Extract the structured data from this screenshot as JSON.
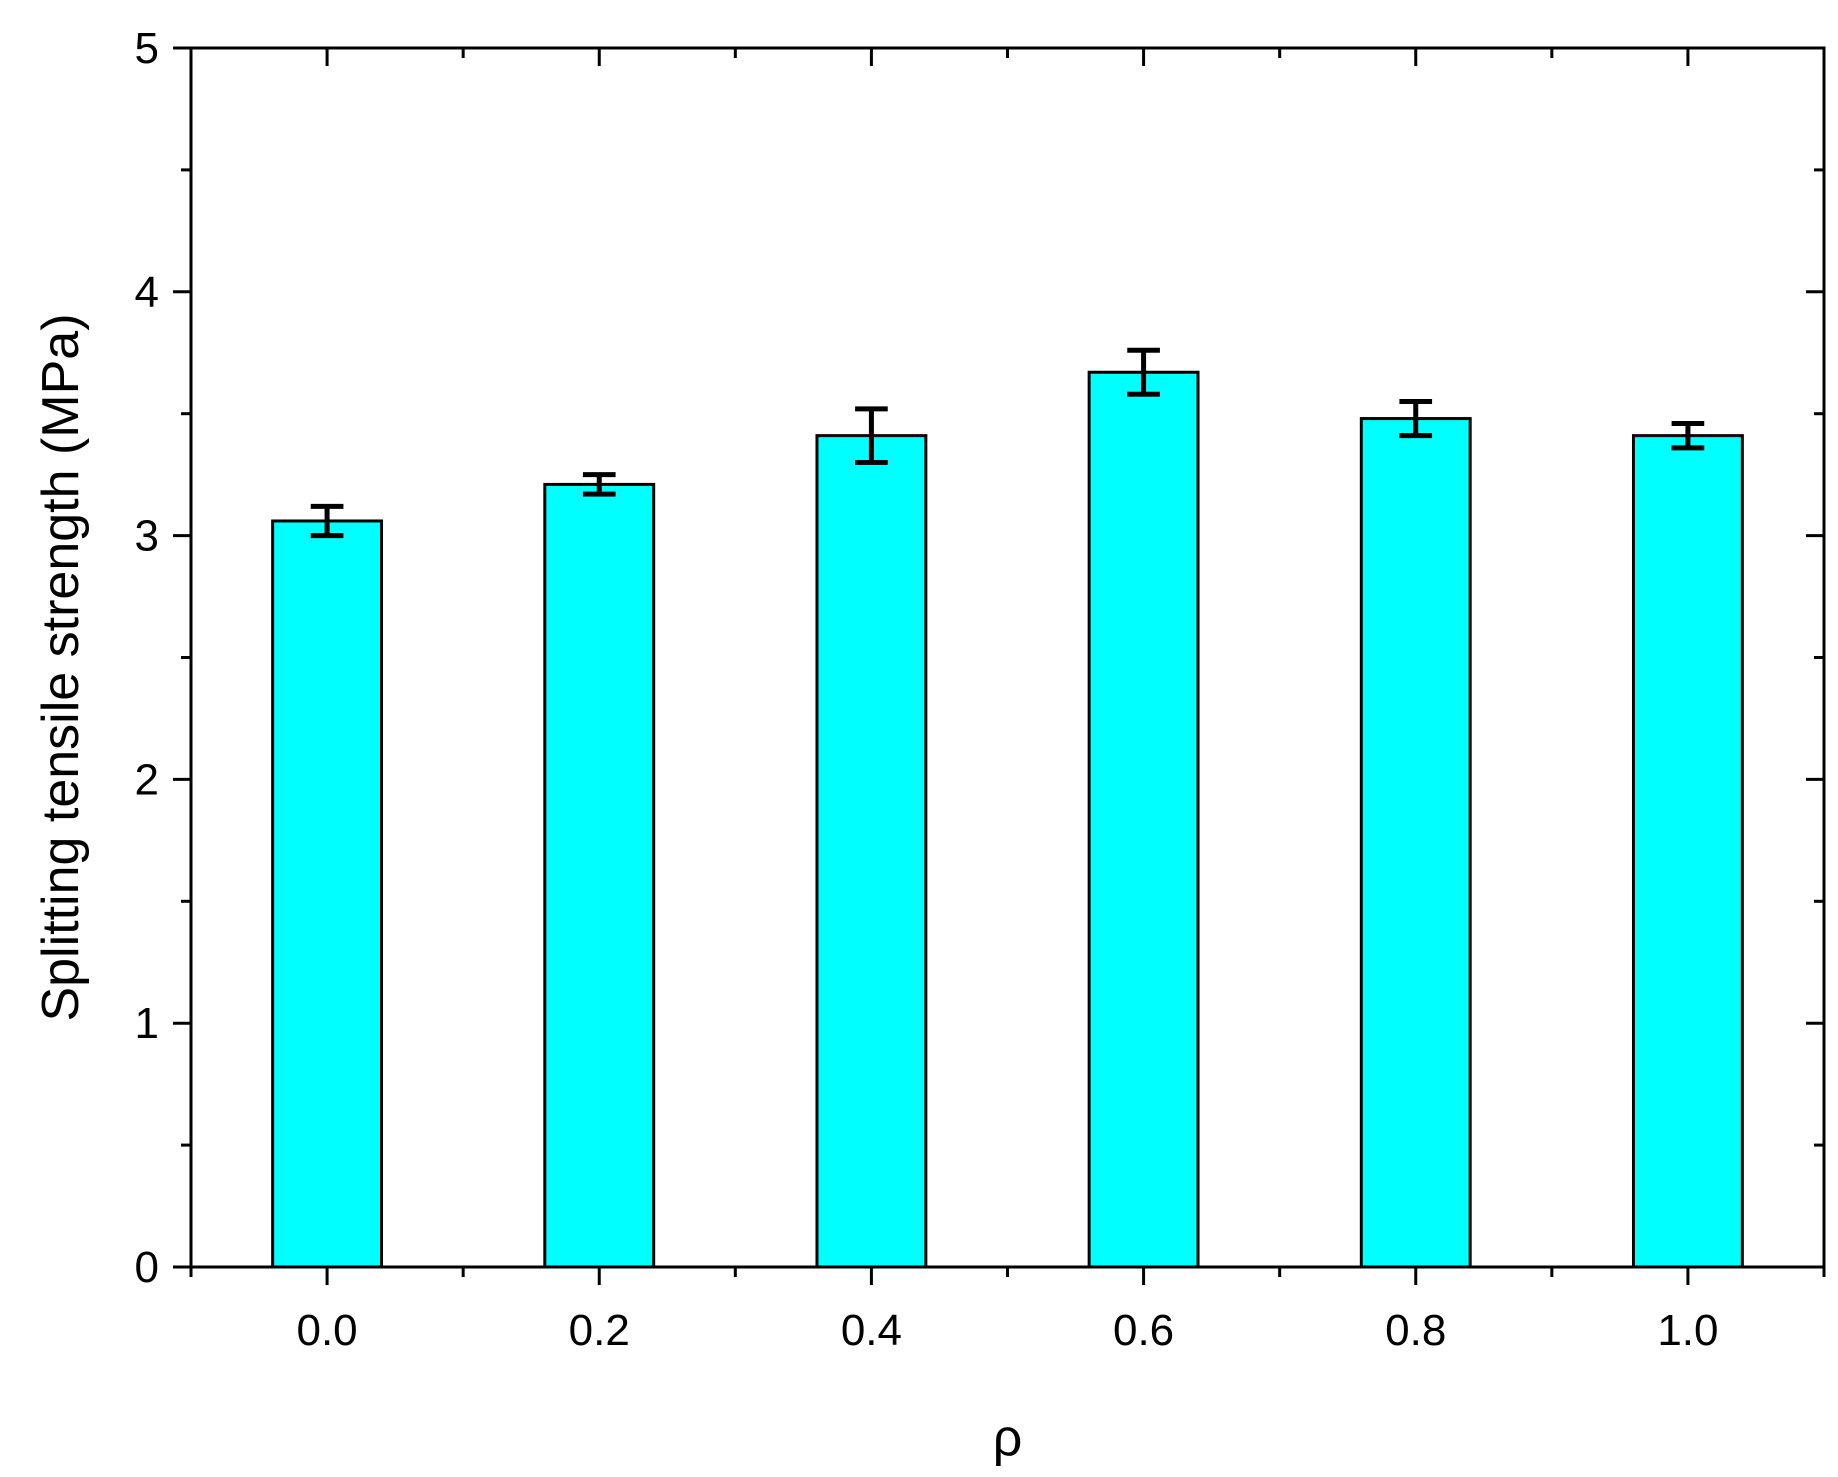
{
  "chart_data": {
    "type": "bar",
    "title": "",
    "xlabel": "ρ",
    "ylabel": "Splitting tensile strength (MPa)",
    "categories": [
      "0.0",
      "0.2",
      "0.4",
      "0.6",
      "0.8",
      "1.0"
    ],
    "series": [
      {
        "values": [
          3.06,
          3.21,
          3.41,
          3.67,
          3.48,
          3.41
        ],
        "errors": [
          0.06,
          0.04,
          0.11,
          0.09,
          0.07,
          0.05
        ]
      }
    ],
    "ylim": [
      0,
      5
    ],
    "xlim": [
      -0.1,
      1.1
    ],
    "yticks": [
      "0",
      "1",
      "2",
      "3",
      "4",
      "5"
    ],
    "grid": false,
    "legend": "none",
    "colors": {
      "bar": "#00ffff",
      "outline": "#000000"
    }
  }
}
